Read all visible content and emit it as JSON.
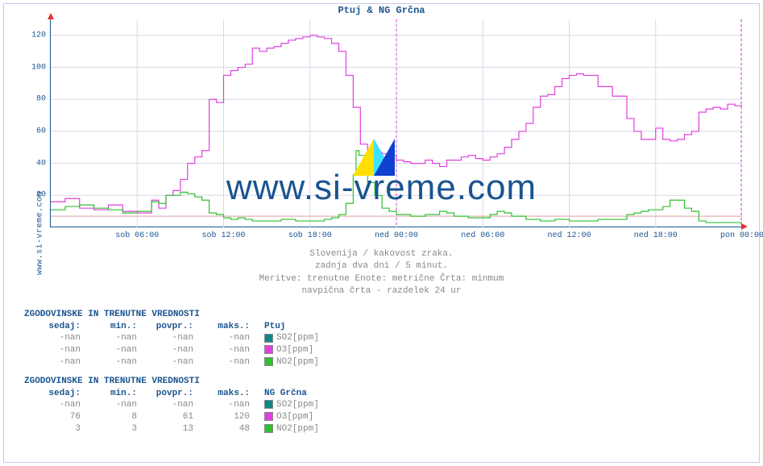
{
  "site": "www.si-vreme.com",
  "title": "Ptuj & NG Grčna",
  "caption_lines": [
    "Slovenija / kakovost zraka.",
    "zadnja dva dni / 5 minut.",
    "Meritve: trenutne  Enote: metrične  Črta: minmum",
    "navpična črta - razdelek 24 ur"
  ],
  "watermark": "www.si-vreme.com",
  "chart": {
    "type": "line",
    "background_color": "#ffffff",
    "grid_color": "#d8d8e8",
    "axis_color": "#1a5490",
    "arrow_color": "#e83030",
    "refline_color": "#e0a0a0",
    "divider_color": "#e040e0",
    "ylim": [
      0,
      130
    ],
    "yticks": [
      20,
      40,
      60,
      80,
      100,
      120
    ],
    "ytick_step": 20,
    "xlim_hours": [
      0,
      48
    ],
    "xticks": [
      {
        "pos_h": 6,
        "label": "sob 06:00"
      },
      {
        "pos_h": 12,
        "label": "sob 12:00"
      },
      {
        "pos_h": 18,
        "label": "sob 18:00"
      },
      {
        "pos_h": 24,
        "label": "ned 00:00"
      },
      {
        "pos_h": 30,
        "label": "ned 06:00"
      },
      {
        "pos_h": 36,
        "label": "ned 12:00"
      },
      {
        "pos_h": 42,
        "label": "ned 18:00"
      },
      {
        "pos_h": 48,
        "label": "pon 00:00"
      }
    ],
    "refline_y": 7,
    "divider_x_h": 24,
    "series": [
      {
        "name": "O3_NG",
        "color": "#e040e0",
        "width": 1.2,
        "points_xy": [
          [
            0,
            16
          ],
          [
            1,
            18
          ],
          [
            2,
            12
          ],
          [
            3,
            11
          ],
          [
            4,
            14
          ],
          [
            5,
            10
          ],
          [
            6,
            9
          ],
          [
            7,
            17
          ],
          [
            7.5,
            12
          ],
          [
            8,
            20
          ],
          [
            8.5,
            23
          ],
          [
            9,
            30
          ],
          [
            9.5,
            40
          ],
          [
            10,
            44
          ],
          [
            10.5,
            48
          ],
          [
            11,
            80
          ],
          [
            11.5,
            78
          ],
          [
            12,
            95
          ],
          [
            12.5,
            98
          ],
          [
            13,
            100
          ],
          [
            13.5,
            102
          ],
          [
            14,
            112
          ],
          [
            14.5,
            110
          ],
          [
            15,
            112
          ],
          [
            15.5,
            113
          ],
          [
            16,
            115
          ],
          [
            16.5,
            117
          ],
          [
            17,
            118
          ],
          [
            17.5,
            119
          ],
          [
            18,
            120
          ],
          [
            18.5,
            119
          ],
          [
            19,
            118
          ],
          [
            19.5,
            115
          ],
          [
            20,
            110
          ],
          [
            20.5,
            95
          ],
          [
            21,
            75
          ],
          [
            21.5,
            52
          ],
          [
            22,
            48
          ],
          [
            22.5,
            47
          ],
          [
            23,
            46
          ],
          [
            23.5,
            45
          ],
          [
            24,
            42
          ],
          [
            24.5,
            41
          ],
          [
            25,
            40
          ],
          [
            25.5,
            40
          ],
          [
            26,
            42
          ],
          [
            26.5,
            40
          ],
          [
            27,
            38
          ],
          [
            27.5,
            42
          ],
          [
            28,
            42
          ],
          [
            28.5,
            44
          ],
          [
            29,
            45
          ],
          [
            29.5,
            43
          ],
          [
            30,
            42
          ],
          [
            30.5,
            44
          ],
          [
            31,
            46
          ],
          [
            31.5,
            50
          ],
          [
            32,
            55
          ],
          [
            32.5,
            60
          ],
          [
            33,
            65
          ],
          [
            33.5,
            75
          ],
          [
            34,
            82
          ],
          [
            34.5,
            83
          ],
          [
            35,
            88
          ],
          [
            35.5,
            93
          ],
          [
            36,
            95
          ],
          [
            36.5,
            96
          ],
          [
            37,
            95
          ],
          [
            37.5,
            95
          ],
          [
            38,
            88
          ],
          [
            38.5,
            88
          ],
          [
            39,
            82
          ],
          [
            39.5,
            82
          ],
          [
            40,
            68
          ],
          [
            40.5,
            60
          ],
          [
            41,
            55
          ],
          [
            41.5,
            55
          ],
          [
            42,
            62
          ],
          [
            42.5,
            55
          ],
          [
            43,
            54
          ],
          [
            43.5,
            55
          ],
          [
            44,
            58
          ],
          [
            44.5,
            60
          ],
          [
            45,
            72
          ],
          [
            45.5,
            74
          ],
          [
            46,
            75
          ],
          [
            46.5,
            74
          ],
          [
            47,
            77
          ],
          [
            47.5,
            76
          ],
          [
            48,
            77
          ]
        ]
      },
      {
        "name": "NO2_NG",
        "color": "#30c030",
        "width": 1.2,
        "points_xy": [
          [
            0,
            11
          ],
          [
            1,
            13
          ],
          [
            2,
            14
          ],
          [
            3,
            12
          ],
          [
            4,
            11
          ],
          [
            5,
            9
          ],
          [
            6,
            10
          ],
          [
            7,
            16
          ],
          [
            7.5,
            15
          ],
          [
            8,
            20
          ],
          [
            8.5,
            20
          ],
          [
            9,
            22
          ],
          [
            9.5,
            21
          ],
          [
            10,
            19
          ],
          [
            10.5,
            17
          ],
          [
            11,
            9
          ],
          [
            11.5,
            8
          ],
          [
            12,
            6
          ],
          [
            12.5,
            5
          ],
          [
            13,
            6
          ],
          [
            13.5,
            5
          ],
          [
            14,
            4
          ],
          [
            15,
            4
          ],
          [
            16,
            5
          ],
          [
            17,
            4
          ],
          [
            18,
            4
          ],
          [
            19,
            5
          ],
          [
            19.5,
            6
          ],
          [
            20,
            8
          ],
          [
            20.5,
            15
          ],
          [
            21,
            33
          ],
          [
            21.2,
            48
          ],
          [
            21.4,
            45
          ],
          [
            21.8,
            42
          ],
          [
            22,
            28
          ],
          [
            22.5,
            20
          ],
          [
            23,
            12
          ],
          [
            23.5,
            10
          ],
          [
            24,
            8
          ],
          [
            25,
            7
          ],
          [
            26,
            8
          ],
          [
            27,
            10
          ],
          [
            27.5,
            9
          ],
          [
            28,
            7
          ],
          [
            29,
            6
          ],
          [
            30,
            6
          ],
          [
            30.5,
            8
          ],
          [
            31,
            10
          ],
          [
            31.5,
            9
          ],
          [
            32,
            7
          ],
          [
            33,
            5
          ],
          [
            34,
            4
          ],
          [
            35,
            5
          ],
          [
            36,
            4
          ],
          [
            37,
            4
          ],
          [
            38,
            5
          ],
          [
            39,
            5
          ],
          [
            40,
            8
          ],
          [
            40.5,
            9
          ],
          [
            41,
            10
          ],
          [
            41.5,
            11
          ],
          [
            42,
            11
          ],
          [
            42.5,
            13
          ],
          [
            43,
            17
          ],
          [
            43.5,
            17
          ],
          [
            44,
            12
          ],
          [
            44.5,
            10
          ],
          [
            45,
            4
          ],
          [
            45.5,
            3
          ],
          [
            46,
            3
          ],
          [
            47,
            3
          ],
          [
            48,
            3
          ]
        ]
      }
    ]
  },
  "tables": [
    {
      "title": "ZGODOVINSKE IN TRENUTNE VREDNOSTI",
      "location": "Ptuj",
      "headers": [
        "sedaj:",
        "min.:",
        "povpr.:",
        "maks.:"
      ],
      "rows": [
        {
          "vals": [
            "-nan",
            "-nan",
            "-nan",
            "-nan"
          ],
          "swatch": "#0f8888",
          "label": "SO2[ppm]"
        },
        {
          "vals": [
            "-nan",
            "-nan",
            "-nan",
            "-nan"
          ],
          "swatch": "#e040e0",
          "label": "O3[ppm]"
        },
        {
          "vals": [
            "-nan",
            "-nan",
            "-nan",
            "-nan"
          ],
          "swatch": "#30c030",
          "label": "NO2[ppm]"
        }
      ]
    },
    {
      "title": "ZGODOVINSKE IN TRENUTNE VREDNOSTI",
      "location": "NG Grčna",
      "headers": [
        "sedaj:",
        "min.:",
        "povpr.:",
        "maks.:"
      ],
      "rows": [
        {
          "vals": [
            "-nan",
            "-nan",
            "-nan",
            "-nan"
          ],
          "swatch": "#0f8888",
          "label": "SO2[ppm]"
        },
        {
          "vals": [
            "76",
            "8",
            "61",
            "120"
          ],
          "swatch": "#e040e0",
          "label": "O3[ppm]"
        },
        {
          "vals": [
            "3",
            "3",
            "13",
            "48"
          ],
          "swatch": "#30c030",
          "label": "NO2[ppm]"
        }
      ]
    }
  ]
}
